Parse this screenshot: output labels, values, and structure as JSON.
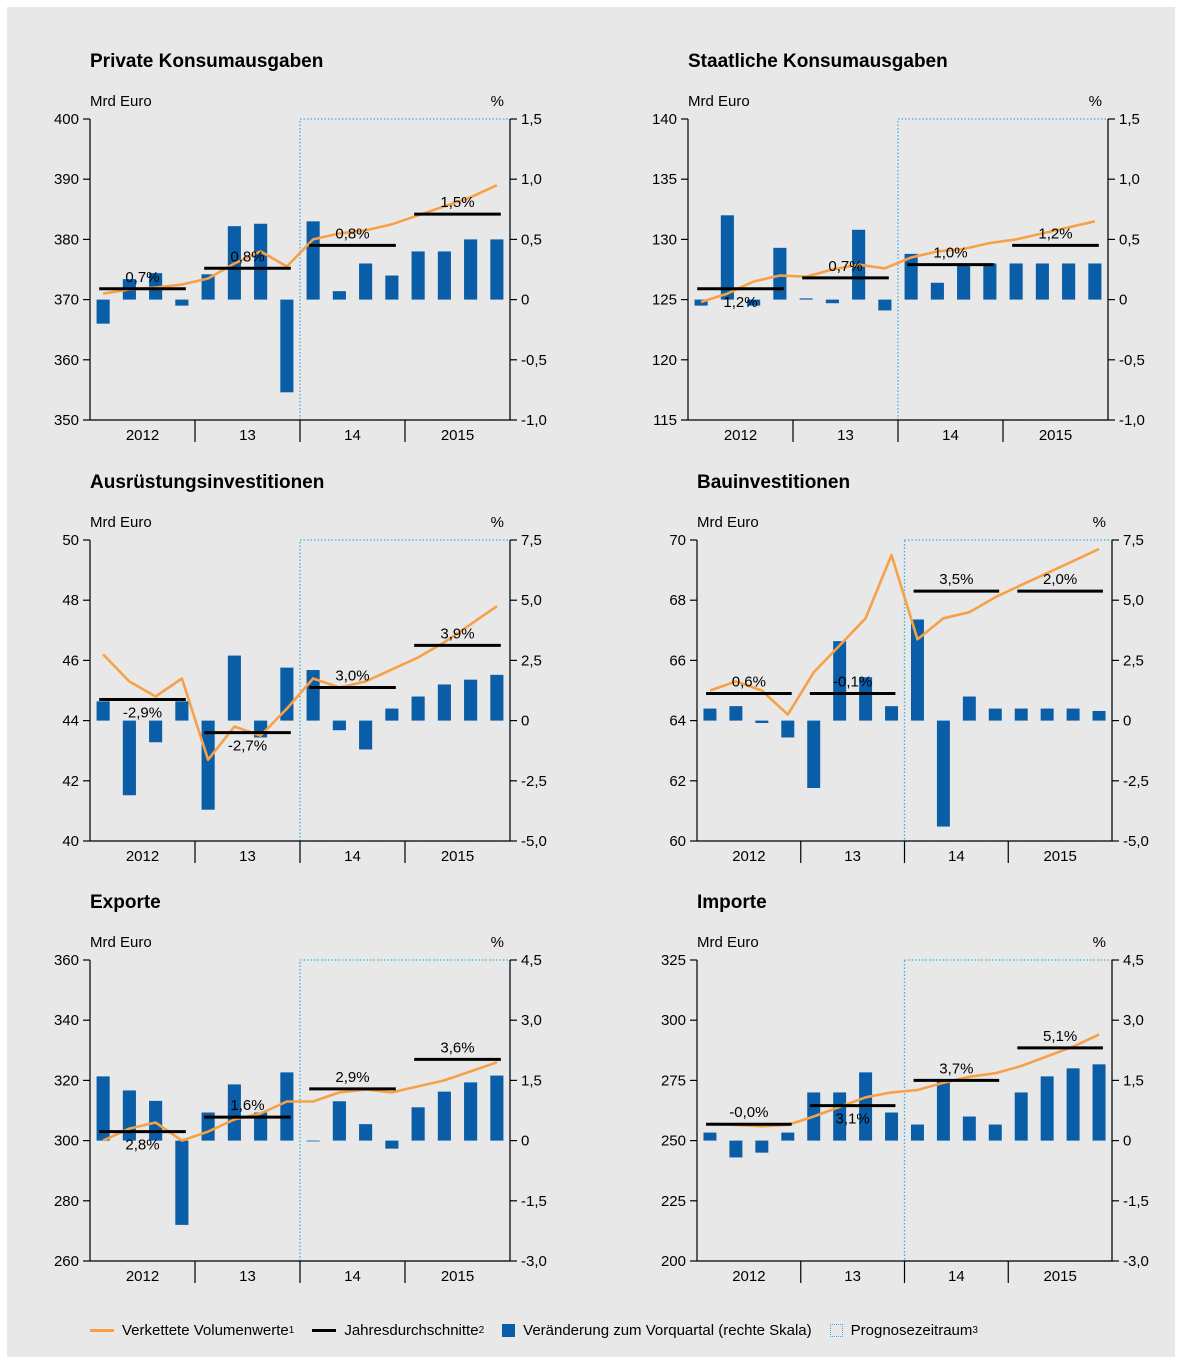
{
  "legend": {
    "volume": "Verkettete Volumenwerte",
    "volume_sup": "1",
    "annual": "Jahresdurchschnitte",
    "annual_sup": "2",
    "change": "Veränderung zum Vorquartal (rechte Skala)",
    "forecast": "Prognosezeitraum",
    "forecast_sup": "3"
  },
  "colors": {
    "line": "#f7a146",
    "bar": "#0a5ea8",
    "annual": "#000000",
    "forecast": "#35b0e6",
    "background": "#e8e8e8"
  },
  "chart_data": [
    {
      "type": "bar+line",
      "title": "Private Konsumausgaben",
      "ylabel_left": "Mrd Euro",
      "ylabel_right": "%",
      "x_labels": [
        "2012",
        "13",
        "14",
        "2015"
      ],
      "left_ticks": [
        "400",
        "390",
        "380",
        "370",
        "360",
        "350"
      ],
      "right_ticks": [
        "1,5",
        "1,0",
        "0,5",
        "0",
        "-0,5",
        "-1,0"
      ],
      "ylim_left": [
        350,
        400
      ],
      "ylim_right": [
        -1.0,
        1.5
      ],
      "forecast_start_quarter": 9,
      "bars": [
        -0.2,
        0.17,
        0.22,
        -0.05,
        0.21,
        0.61,
        0.63,
        -0.77,
        0.65,
        0.07,
        0.3,
        0.2,
        0.4,
        0.4,
        0.5,
        0.5
      ],
      "line": [
        371,
        371.7,
        372,
        372.5,
        373.5,
        376,
        378,
        375.5,
        380,
        381,
        381.5,
        382.5,
        384,
        385.5,
        387,
        389
      ],
      "annual_avg": [
        371.8,
        375.2,
        379,
        384.2
      ],
      "annual_labels": [
        "0,7%",
        "0,8%",
        "0,8%",
        "1,5%"
      ],
      "annual_label_pos": [
        "above",
        "above",
        "above",
        "above"
      ]
    },
    {
      "type": "bar+line",
      "title": "Staatliche Konsumausgaben",
      "ylabel_left": "Mrd Euro",
      "ylabel_right": "%",
      "x_labels": [
        "2012",
        "13",
        "14",
        "2015"
      ],
      "left_ticks": [
        "140",
        "135",
        "130",
        "125",
        "120",
        "115"
      ],
      "right_ticks": [
        "1,5",
        "1,0",
        "0,5",
        "0",
        "-0,5",
        "-1,0"
      ],
      "ylim_left": [
        115,
        140
      ],
      "ylim_right": [
        -1.0,
        1.5
      ],
      "forecast_start_quarter": 9,
      "bars": [
        -0.05,
        0.7,
        -0.05,
        0.43,
        0.01,
        -0.03,
        0.58,
        -0.09,
        0.38,
        0.14,
        0.3,
        0.3,
        0.3,
        0.3,
        0.3,
        0.3
      ],
      "line": [
        124.8,
        125.5,
        126.5,
        127,
        126.9,
        127.5,
        127.9,
        127.6,
        128.5,
        129,
        129.2,
        129.7,
        130,
        130.5,
        131,
        131.5
      ],
      "annual_avg": [
        125.9,
        126.8,
        127.9,
        129.5
      ],
      "annual_labels": [
        "1,2%",
        "0,7%",
        "1,0%",
        "1,2%"
      ],
      "annual_label_pos": [
        "below",
        "above",
        "above",
        "above"
      ]
    },
    {
      "type": "bar+line",
      "title": "Ausrüstungsinvestitionen",
      "ylabel_left": "Mrd Euro",
      "ylabel_right": "%",
      "x_labels": [
        "2012",
        "13",
        "14",
        "2015"
      ],
      "left_ticks": [
        "50",
        "48",
        "46",
        "44",
        "42",
        "40"
      ],
      "right_ticks": [
        "7,5",
        "5,0",
        "2,5",
        "0",
        "-2,5",
        "-5,0"
      ],
      "ylim_left": [
        40,
        50
      ],
      "ylim_right": [
        -5.0,
        7.5
      ],
      "forecast_start_quarter": 9,
      "bars": [
        0.8,
        -3.1,
        -0.9,
        0.8,
        -3.7,
        2.7,
        -0.7,
        2.2,
        2.1,
        -0.4,
        -1.2,
        0.5,
        1.0,
        1.5,
        1.7,
        1.9
      ],
      "line": [
        46.2,
        45.3,
        44.8,
        45.4,
        42.7,
        43.8,
        43.5,
        44.4,
        45.4,
        45.1,
        45.3,
        45.7,
        46.1,
        46.6,
        47.2,
        47.8
      ],
      "annual_avg": [
        44.7,
        43.6,
        45.1,
        46.5
      ],
      "annual_labels": [
        "-2,9%",
        "-2,7%",
        "3,0%",
        "3,9%"
      ],
      "annual_label_pos": [
        "below",
        "below",
        "above",
        "above"
      ]
    },
    {
      "type": "bar+line",
      "title": "Bauinvestitionen",
      "ylabel_left": "Mrd Euro",
      "ylabel_right": "%",
      "x_labels": [
        "2012",
        "13",
        "14",
        "2015"
      ],
      "left_ticks": [
        "70",
        "68",
        "66",
        "64",
        "62",
        "60"
      ],
      "right_ticks": [
        "7,5",
        "5,0",
        "2,5",
        "0",
        "-2,5",
        "-5,0"
      ],
      "ylim_left": [
        60,
        70
      ],
      "ylim_right": [
        -5.0,
        7.5
      ],
      "forecast_start_quarter": 9,
      "bars": [
        0.5,
        0.6,
        -0.1,
        -0.7,
        -2.8,
        3.3,
        1.8,
        0.6,
        4.2,
        -4.4,
        1.0,
        0.5,
        0.5,
        0.5,
        0.5,
        0.4
      ],
      "line": [
        65,
        65.3,
        65,
        64.2,
        65.6,
        66.5,
        67.4,
        69.5,
        66.7,
        67.4,
        67.6,
        68.1,
        68.5,
        68.9,
        69.3,
        69.7
      ],
      "annual_avg": [
        64.9,
        64.9,
        68.3,
        68.3
      ],
      "annual_labels": [
        "0,6%",
        "-0,1%",
        "3,5%",
        "2,0%"
      ],
      "annual_label_pos": [
        "above",
        "above",
        "above",
        "above"
      ]
    },
    {
      "type": "bar+line",
      "title": "Exporte",
      "ylabel_left": "Mrd Euro",
      "ylabel_right": "%",
      "x_labels": [
        "2012",
        "13",
        "14",
        "2015"
      ],
      "left_ticks": [
        "360",
        "340",
        "320",
        "300",
        "280",
        "260"
      ],
      "right_ticks": [
        "4,5",
        "3,0",
        "1,5",
        "0",
        "-1,5",
        "-3,0"
      ],
      "ylim_left": [
        260,
        360
      ],
      "ylim_right": [
        -3.0,
        4.5
      ],
      "forecast_start_quarter": 9,
      "bars": [
        1.6,
        1.25,
        0.99,
        -2.1,
        0.7,
        1.4,
        0.7,
        1.7,
        0.0,
        0.98,
        0.41,
        -0.2,
        0.83,
        1.22,
        1.45,
        1.62
      ],
      "line": [
        300,
        304,
        306,
        300,
        303,
        307,
        309,
        313,
        313,
        316,
        317,
        316,
        318,
        320,
        323,
        326
      ],
      "annual_avg": [
        303,
        307.8,
        317.2,
        327
      ],
      "annual_labels": [
        "2,8%",
        "1,6%",
        "2,9%",
        "3,6%"
      ],
      "annual_label_pos": [
        "below",
        "above",
        "above",
        "above"
      ]
    },
    {
      "type": "bar+line",
      "title": "Importe",
      "ylabel_left": "Mrd Euro",
      "ylabel_right": "%",
      "x_labels": [
        "2012",
        "13",
        "14",
        "2015"
      ],
      "left_ticks": [
        "325",
        "300",
        "275",
        "250",
        "225",
        "200"
      ],
      "right_ticks": [
        "4,5",
        "3,0",
        "1,5",
        "0",
        "-1,5",
        "-3,0"
      ],
      "ylim_left": [
        200,
        325
      ],
      "ylim_right": [
        -3.0,
        4.5
      ],
      "forecast_start_quarter": 9,
      "bars": [
        0.2,
        -0.42,
        -0.3,
        0.2,
        1.2,
        1.2,
        1.7,
        0.7,
        0.4,
        1.5,
        0.6,
        0.4,
        1.2,
        1.6,
        1.8,
        1.9
      ],
      "line": [
        257,
        256.5,
        256,
        256.5,
        260,
        264,
        268,
        270,
        271,
        274,
        276.5,
        278,
        281,
        285,
        289,
        294
      ],
      "annual_avg": [
        256.8,
        264.5,
        275,
        288.5
      ],
      "annual_labels": [
        "-0,0%",
        "3,1%",
        "3,7%",
        "5,1%"
      ],
      "annual_label_pos": [
        "above",
        "below",
        "above",
        "above"
      ]
    }
  ]
}
